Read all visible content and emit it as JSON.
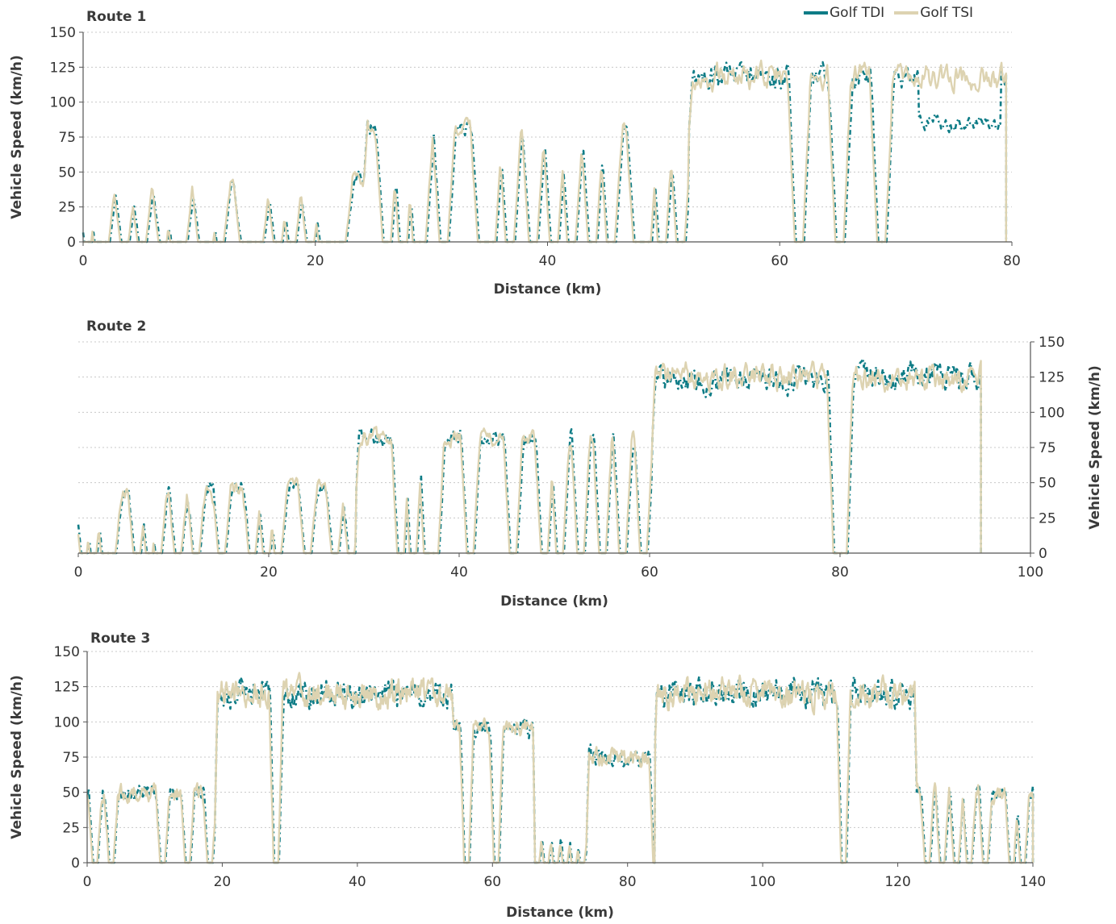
{
  "legend": {
    "series": [
      {
        "name": "Golf TDI",
        "color": "#0e7c86"
      },
      {
        "name": "Golf TSI",
        "color": "#ddd3b1"
      }
    ],
    "placement": "top-right"
  },
  "chart_data": [
    {
      "type": "line",
      "title": "Route 1",
      "xlabel": "Distance (km)",
      "ylabel": "Vehicle Speed (km/h)",
      "y_axis_side": "left",
      "xlim": [
        0,
        80
      ],
      "ylim": [
        0,
        150
      ],
      "x_ticks": [
        0,
        20,
        40,
        60,
        80
      ],
      "y_ticks": [
        0,
        25,
        50,
        75,
        100,
        125,
        150
      ],
      "grid": "horizontal dotted",
      "segments": [
        {
          "start": 0,
          "end": 24.2,
          "level": 46,
          "drops": [
            0.4,
            1.3,
            1.9,
            3.6,
            5.1,
            6.9,
            7.9,
            8.6,
            10.3,
            10.9,
            11.8,
            13.9,
            14.7,
            15.2,
            16.8,
            18.0,
            19.6,
            20.7,
            21.5,
            22.3
          ]
        },
        {
          "start": 24.2,
          "end": 52.2,
          "level": 82,
          "drops": [
            26.2,
            27.6,
            28.8,
            29.2,
            31.1,
            34.4,
            35.2,
            36.8,
            38.8,
            40.6,
            42.1,
            43.9,
            45.5,
            47.8,
            48.6,
            49.9,
            51.5
          ]
        },
        {
          "start": 52.2,
          "end": 79.5,
          "level": 118,
          "drops": [
            61.7,
            65.2,
            68.8
          ]
        }
      ],
      "series": [
        {
          "name": "Golf TDI",
          "color": "#0e7c86",
          "dash": "6 4 2 4"
        },
        {
          "name": "Golf TSI",
          "color": "#ddd3b1",
          "dash": ""
        }
      ],
      "tdi_late_dip": {
        "start": 72,
        "end": 79,
        "level": 85
      }
    },
    {
      "type": "line",
      "title": "Route 2",
      "xlabel": "Distance (km)",
      "ylabel": "Vehicle Speed (km/h)",
      "y_axis_side": "right",
      "xlim": [
        0,
        100
      ],
      "ylim": [
        0,
        150
      ],
      "x_ticks": [
        0,
        20,
        40,
        60,
        80,
        100
      ],
      "y_ticks": [
        0,
        25,
        50,
        75,
        100,
        125,
        150
      ],
      "grid": "horizontal dotted",
      "segments": [
        {
          "start": 0,
          "end": 29.2,
          "level": 46,
          "drops": [
            0.6,
            1.6,
            2.8,
            3.6,
            6.2,
            7.5,
            8.4,
            10.5,
            12.4,
            15.1,
            18.3,
            19.8,
            21.0,
            24.1,
            27.0,
            28.7
          ]
        },
        {
          "start": 29.2,
          "end": 60.3,
          "level": 82,
          "drops": [
            33.9,
            35.2,
            36.7,
            37.5,
            41.2,
            45.7,
            49.0,
            50.6,
            52.8,
            55.1,
            57.2,
            59.4
          ]
        },
        {
          "start": 60.3,
          "end": 94.8,
          "level": 125,
          "drops": [
            79.7,
            80.4
          ]
        }
      ],
      "series": [
        {
          "name": "Golf TDI",
          "color": "#0e7c86",
          "dash": "6 4 2 4"
        },
        {
          "name": "Golf TSI",
          "color": "#ddd3b1",
          "dash": ""
        }
      ]
    },
    {
      "type": "line",
      "title": "Route 3",
      "xlabel": "Distance (km)",
      "ylabel": "Vehicle Speed (km/h)",
      "y_axis_side": "left",
      "xlim": [
        0,
        140
      ],
      "ylim": [
        0,
        150
      ],
      "x_ticks": [
        0,
        20,
        40,
        60,
        80,
        100,
        120,
        140
      ],
      "y_ticks": [
        0,
        25,
        50,
        75,
        100,
        125,
        150
      ],
      "grid": "horizontal dotted",
      "segments": [
        {
          "start": 0,
          "end": 19.0,
          "level": 50,
          "drops": [
            1.2,
            3.6,
            11.2,
            14.9,
            18.2
          ]
        },
        {
          "start": 19.0,
          "end": 54.0,
          "level": 120,
          "drops": [
            28.0
          ]
        },
        {
          "start": 54.0,
          "end": 66.0,
          "level": 95,
          "drops": [
            56.2,
            60.6
          ]
        },
        {
          "start": 66.0,
          "end": 74.0,
          "level": 30,
          "drops": [
            66.6,
            68.0,
            69.4,
            70.8,
            72.1,
            73.3
          ]
        },
        {
          "start": 74.0,
          "end": 84.0,
          "level": 75,
          "drops": [
            84.2
          ]
        },
        {
          "start": 84.0,
          "end": 122.5,
          "level": 120,
          "drops": [
            112.0
          ]
        },
        {
          "start": 122.5,
          "end": 140.0,
          "level": 50,
          "drops": [
            124.4,
            126.6,
            128.7,
            130.6,
            133.0,
            136.9,
            138.5
          ]
        }
      ],
      "series": [
        {
          "name": "Golf TDI",
          "color": "#0e7c86",
          "dash": "6 4 2 4"
        },
        {
          "name": "Golf TSI",
          "color": "#ddd3b1",
          "dash": ""
        }
      ]
    }
  ]
}
